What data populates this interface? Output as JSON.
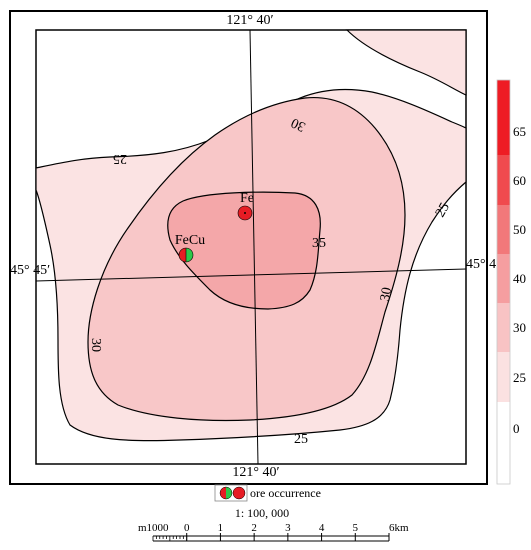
{
  "map": {
    "longitude_label": "121° 40′",
    "latitude_label": "45° 45′",
    "contour_labels": [
      "25",
      "30",
      "35",
      "30",
      "25",
      "30",
      "25"
    ]
  },
  "points": [
    {
      "label": "Fe",
      "kind": "Fe"
    },
    {
      "label": "FeCu",
      "kind": "FeCu"
    }
  ],
  "legend": {
    "colorbar": {
      "ticks": [
        "65",
        "60",
        "50",
        "40",
        "30",
        "25",
        "0"
      ],
      "colors": [
        "#ee1c24",
        "#f04a4e",
        "#f2787a",
        "#f59ea0",
        "#f8c3c4",
        "#fbe1e1",
        "#ffffff"
      ]
    },
    "symbol_label": "ore occurrence"
  },
  "scale": {
    "ratio": "1: 100, 000",
    "left_label": "m1000",
    "ticks": [
      "0",
      "1",
      "2",
      "3",
      "4",
      "5",
      "6km"
    ]
  },
  "colors": {
    "fill_25": "#fbe3e3",
    "fill_30": "#f8c7c8",
    "fill_35": "#f4a7a9",
    "marker_red": "#e61c24",
    "marker_green": "#2cc84a"
  }
}
